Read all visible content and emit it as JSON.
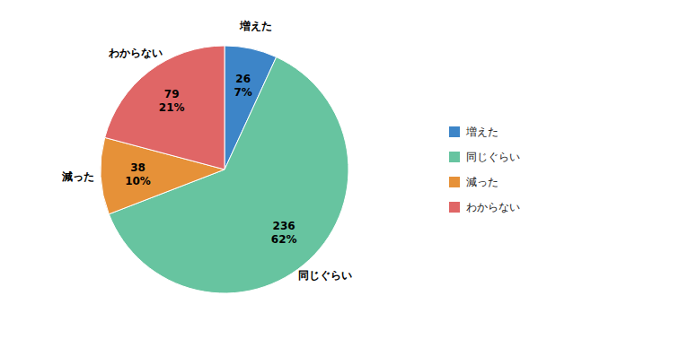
{
  "chart_data": {
    "type": "pie",
    "categories": [
      "増えた",
      "同じぐらい",
      "減った",
      "わからない"
    ],
    "values": [
      26,
      236,
      38,
      79
    ],
    "percentages": [
      7,
      62,
      10,
      21
    ],
    "percentage_labels": [
      "7%",
      "62%",
      "10%",
      "21%"
    ],
    "colors": [
      "#3d85c8",
      "#67c4a0",
      "#e69138",
      "#e06666"
    ],
    "data_labels": true,
    "legend": "right"
  }
}
